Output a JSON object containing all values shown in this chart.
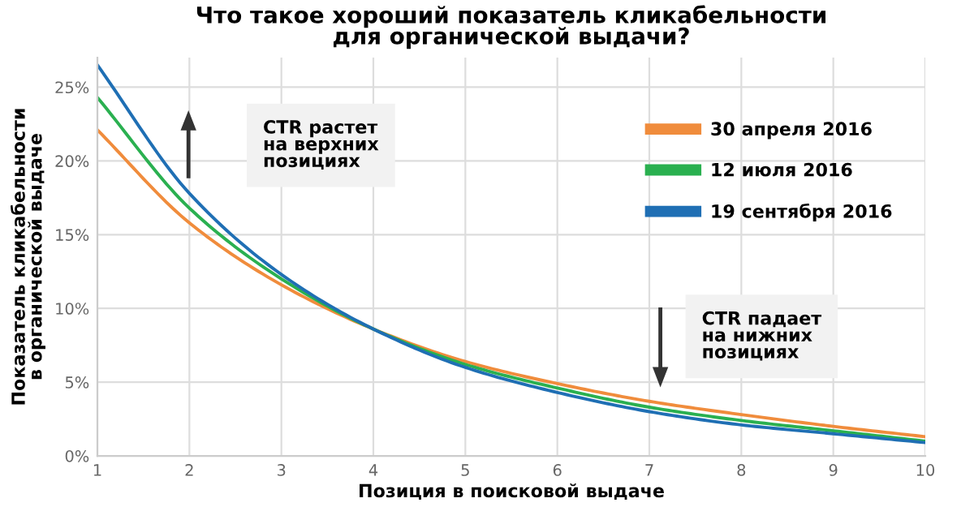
{
  "chart_data": {
    "type": "line",
    "title": "Что такое хороший показатель кликабельности\nдля органической выдачи?",
    "xlabel": "Позиция в поисковой выдаче",
    "ylabel": "Показатель кликабельности\nв органической выдаче",
    "x": [
      1,
      2,
      3,
      4,
      5,
      6,
      7,
      8,
      9,
      10
    ],
    "series": [
      {
        "name": "30 апреля 2016",
        "color": "#f08c3c",
        "values": [
          22.1,
          15.8,
          11.6,
          8.6,
          6.4,
          4.9,
          3.7,
          2.8,
          2.0,
          1.3
        ]
      },
      {
        "name": "12 июля 2016",
        "color": "#2ab050",
        "values": [
          24.3,
          16.8,
          12.0,
          8.6,
          6.2,
          4.6,
          3.3,
          2.4,
          1.7,
          1.0
        ]
      },
      {
        "name": "19 сентября 2016",
        "color": "#1f6fb4",
        "values": [
          26.5,
          17.8,
          12.3,
          8.6,
          6.0,
          4.3,
          3.0,
          2.1,
          1.5,
          0.9
        ]
      }
    ],
    "xlim": [
      1,
      10
    ],
    "ylim": [
      0,
      27
    ],
    "xticks": [
      1,
      2,
      3,
      4,
      5,
      6,
      7,
      8,
      9,
      10
    ],
    "yticks": [
      {
        "value": 0,
        "label": "0%"
      },
      {
        "value": 5,
        "label": "5%"
      },
      {
        "value": 10,
        "label": "10%"
      },
      {
        "value": 15,
        "label": "15%"
      },
      {
        "value": 20,
        "label": "20%"
      },
      {
        "value": 25,
        "label": "25%"
      }
    ],
    "grid": true,
    "legend": "top right",
    "line_style": "solid",
    "marker": "none",
    "annotations": [
      "CTR растет\nна верхних\nпозициях",
      "CTR падает\nна нижних\nпозициях"
    ]
  }
}
